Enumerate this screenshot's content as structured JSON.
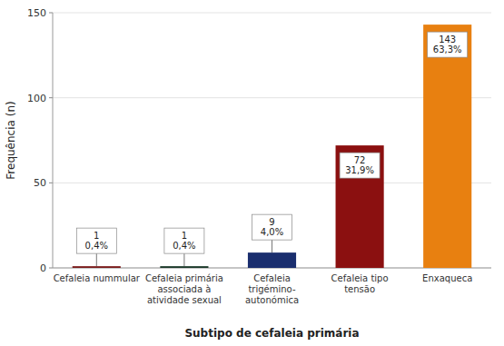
{
  "chart_data": {
    "type": "bar",
    "categories": [
      "Cefaleia nummular",
      "Cefaleia primária\nassociada à\natividade sexual",
      "Cefaleia\ntrigémino-\nautonómica",
      "Cefaleia tipo\ntensão",
      "Enxaqueca"
    ],
    "values": [
      1,
      1,
      9,
      72,
      143
    ],
    "value_labels": [
      "1\n0,4%",
      "1\n0,4%",
      "9\n4,0%",
      "72\n31,9%",
      "143\n63,3%"
    ],
    "data_labels": true,
    "colors": [
      "#7B1C1C",
      "#1B3A2A",
      "#1A2E6E",
      "#8B1010",
      "#E88010"
    ],
    "xlabel": "Subtipo de cefaleia primária",
    "ylabel": "Frequência (n)",
    "ylim": [
      0,
      150
    ],
    "yticks": [
      0,
      50,
      100,
      150
    ],
    "grid": true
  }
}
